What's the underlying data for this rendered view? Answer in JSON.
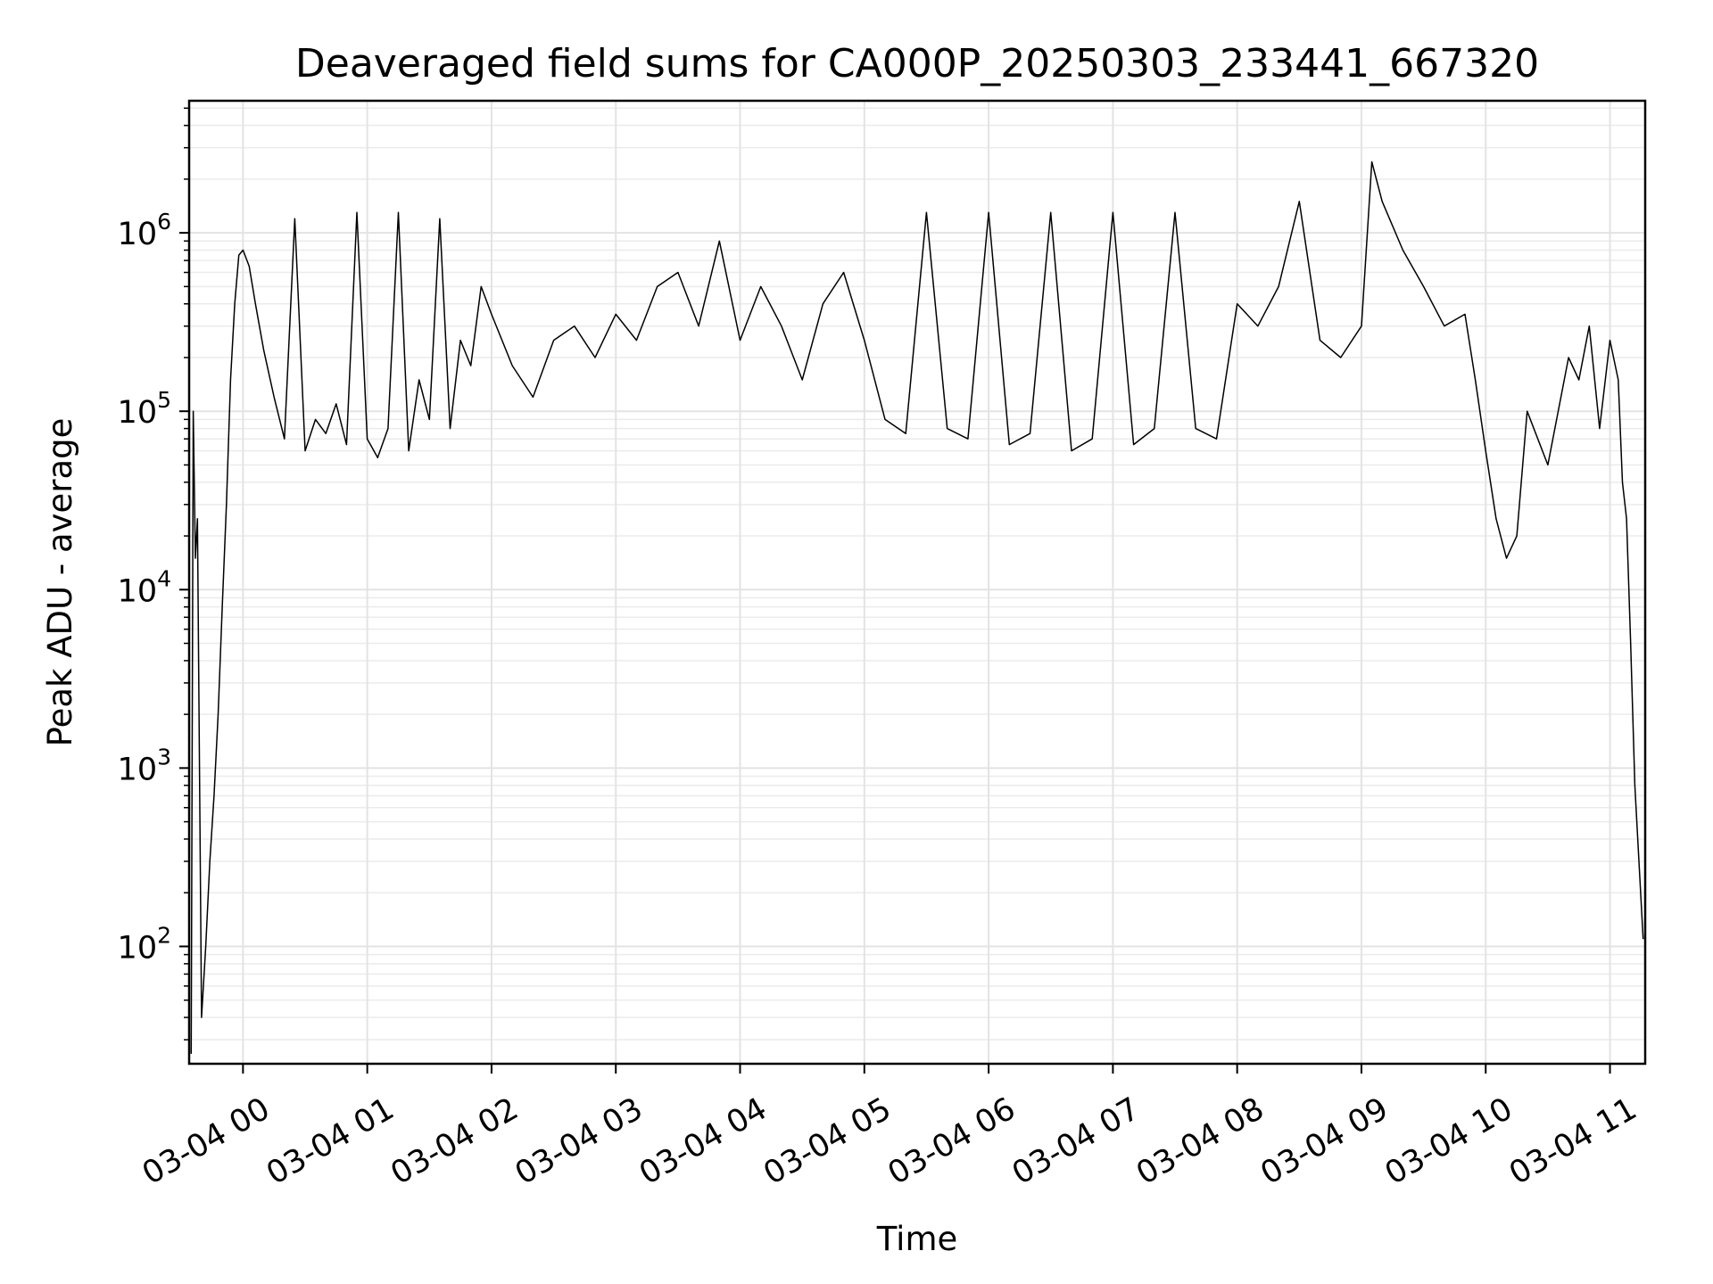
{
  "chart_data": {
    "type": "line",
    "title": "Deaveraged field sums for CA000P_20250303_233441_667320",
    "xlabel": "Time",
    "ylabel": "Peak ADU - average",
    "y_scale": "log",
    "ylim": [
      22,
      5500000
    ],
    "xlim": [
      "2025-03-03 23:34",
      "2025-03-04 11:17"
    ],
    "grid": "on (major and minor)",
    "legend": "none",
    "line_color": "#000000",
    "x_ticks": [
      {
        "label": "03-04 00",
        "time": "2025-03-04 00:00"
      },
      {
        "label": "03-04 01",
        "time": "2025-03-04 01:00"
      },
      {
        "label": "03-04 02",
        "time": "2025-03-04 02:00"
      },
      {
        "label": "03-04 03",
        "time": "2025-03-04 03:00"
      },
      {
        "label": "03-04 04",
        "time": "2025-03-04 04:00"
      },
      {
        "label": "03-04 05",
        "time": "2025-03-04 05:00"
      },
      {
        "label": "03-04 06",
        "time": "2025-03-04 06:00"
      },
      {
        "label": "03-04 07",
        "time": "2025-03-04 07:00"
      },
      {
        "label": "03-04 08",
        "time": "2025-03-04 08:00"
      },
      {
        "label": "03-04 09",
        "time": "2025-03-04 09:00"
      },
      {
        "label": "03-04 10",
        "time": "2025-03-04 10:00"
      },
      {
        "label": "03-04 11",
        "time": "2025-03-04 11:00"
      }
    ],
    "y_ticks": [
      {
        "base": "10",
        "exp": "2",
        "value": 100
      },
      {
        "base": "10",
        "exp": "3",
        "value": 1000
      },
      {
        "base": "10",
        "exp": "4",
        "value": 10000
      },
      {
        "base": "10",
        "exp": "5",
        "value": 100000
      },
      {
        "base": "10",
        "exp": "6",
        "value": 1000000
      }
    ],
    "series": [
      {
        "x": [
          "2025-03-03 23:35",
          "2025-03-03 23:36",
          "2025-03-03 23:37",
          "2025-03-03 23:38",
          "2025-03-03 23:40",
          "2025-03-03 23:42",
          "2025-03-03 23:44",
          "2025-03-03 23:46",
          "2025-03-03 23:48",
          "2025-03-03 23:50",
          "2025-03-03 23:52",
          "2025-03-03 23:54",
          "2025-03-03 23:56",
          "2025-03-03 23:58",
          "2025-03-04 00:00",
          "2025-03-04 00:03",
          "2025-03-04 00:06",
          "2025-03-04 00:10",
          "2025-03-04 00:15",
          "2025-03-04 00:20",
          "2025-03-04 00:25",
          "2025-03-04 00:30",
          "2025-03-04 00:35",
          "2025-03-04 00:40",
          "2025-03-04 00:45",
          "2025-03-04 00:50",
          "2025-03-04 00:55",
          "2025-03-04 01:00",
          "2025-03-04 01:05",
          "2025-03-04 01:10",
          "2025-03-04 01:15",
          "2025-03-04 01:20",
          "2025-03-04 01:25",
          "2025-03-04 01:30",
          "2025-03-04 01:35",
          "2025-03-04 01:40",
          "2025-03-04 01:45",
          "2025-03-04 01:50",
          "2025-03-04 01:55",
          "2025-03-04 02:00",
          "2025-03-04 02:10",
          "2025-03-04 02:20",
          "2025-03-04 02:30",
          "2025-03-04 02:40",
          "2025-03-04 02:50",
          "2025-03-04 03:00",
          "2025-03-04 03:10",
          "2025-03-04 03:20",
          "2025-03-04 03:30",
          "2025-03-04 03:40",
          "2025-03-04 03:50",
          "2025-03-04 04:00",
          "2025-03-04 04:10",
          "2025-03-04 04:20",
          "2025-03-04 04:30",
          "2025-03-04 04:40",
          "2025-03-04 04:50",
          "2025-03-04 05:00",
          "2025-03-04 05:10",
          "2025-03-04 05:20",
          "2025-03-04 05:30",
          "2025-03-04 05:40",
          "2025-03-04 05:50",
          "2025-03-04 06:00",
          "2025-03-04 06:10",
          "2025-03-04 06:20",
          "2025-03-04 06:30",
          "2025-03-04 06:40",
          "2025-03-04 06:50",
          "2025-03-04 07:00",
          "2025-03-04 07:10",
          "2025-03-04 07:20",
          "2025-03-04 07:30",
          "2025-03-04 07:40",
          "2025-03-04 07:50",
          "2025-03-04 08:00",
          "2025-03-04 08:10",
          "2025-03-04 08:20",
          "2025-03-04 08:30",
          "2025-03-04 08:40",
          "2025-03-04 08:50",
          "2025-03-04 09:00",
          "2025-03-04 09:05",
          "2025-03-04 09:10",
          "2025-03-04 09:20",
          "2025-03-04 09:30",
          "2025-03-04 09:40",
          "2025-03-04 09:50",
          "2025-03-04 09:55",
          "2025-03-04 10:00",
          "2025-03-04 10:05",
          "2025-03-04 10:10",
          "2025-03-04 10:15",
          "2025-03-04 10:20",
          "2025-03-04 10:30",
          "2025-03-04 10:40",
          "2025-03-04 10:45",
          "2025-03-04 10:50",
          "2025-03-04 10:55",
          "2025-03-04 11:00",
          "2025-03-04 11:04",
          "2025-03-04 11:06",
          "2025-03-04 11:08",
          "2025-03-04 11:10",
          "2025-03-04 11:12",
          "2025-03-04 11:14",
          "2025-03-04 11:16"
        ],
        "y": [
          25,
          100000,
          15000,
          25000,
          40,
          100,
          300,
          700,
          2000,
          8000,
          30000,
          150000,
          400000,
          750000,
          800000,
          650000,
          400000,
          220000,
          120000,
          70000,
          1200000,
          60000,
          90000,
          75000,
          110000,
          65000,
          1300000,
          70000,
          55000,
          80000,
          1300000,
          60000,
          150000,
          90000,
          1200000,
          80000,
          250000,
          180000,
          500000,
          350000,
          180000,
          120000,
          250000,
          300000,
          200000,
          350000,
          250000,
          500000,
          600000,
          300000,
          900000,
          250000,
          500000,
          300000,
          150000,
          400000,
          600000,
          250000,
          90000,
          75000,
          1300000,
          80000,
          70000,
          1300000,
          65000,
          75000,
          1300000,
          60000,
          70000,
          1300000,
          65000,
          80000,
          1300000,
          80000,
          70000,
          400000,
          300000,
          500000,
          1500000,
          250000,
          200000,
          300000,
          2500000,
          1500000,
          800000,
          500000,
          300000,
          350000,
          150000,
          60000,
          25000,
          15000,
          20000,
          100000,
          50000,
          200000,
          150000,
          300000,
          80000,
          250000,
          150000,
          40000,
          25000,
          5000,
          800,
          300,
          110
        ]
      }
    ]
  }
}
